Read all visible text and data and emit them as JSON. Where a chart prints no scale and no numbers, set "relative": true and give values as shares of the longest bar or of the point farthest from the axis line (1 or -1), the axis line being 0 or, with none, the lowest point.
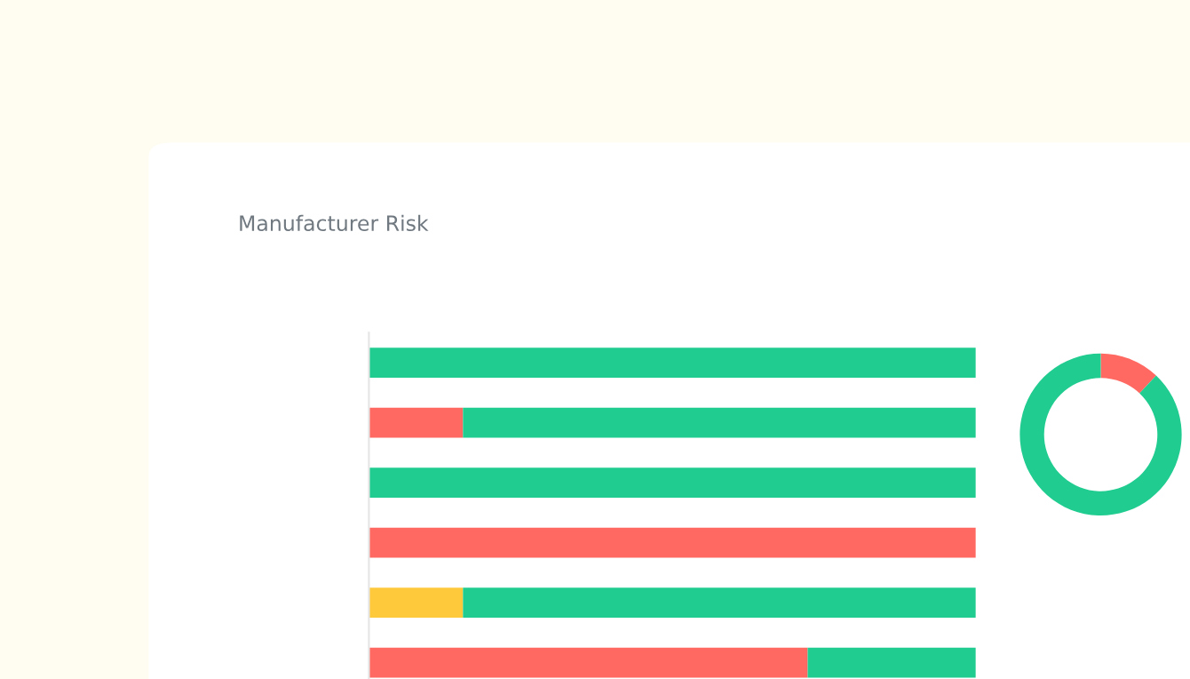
{
  "chart_data": [
    {
      "type": "bar",
      "title": "Manufacturer Risk",
      "orientation": "horizontal",
      "stacked": true,
      "relative": true,
      "categories": [
        null,
        null,
        null,
        null,
        null,
        null
      ],
      "series": [
        {
          "color": "#ff6961",
          "values": [
            0,
            0.155,
            0,
            1,
            0,
            0.723
          ]
        },
        {
          "color": "#ffc93c",
          "values": [
            0,
            0,
            0,
            0,
            0.155,
            0
          ]
        },
        {
          "color": "#20cc90",
          "values": [
            1,
            0.845,
            1,
            0,
            0.845,
            0.277
          ]
        }
      ]
    },
    {
      "type": "donut",
      "categories": [
        null,
        null
      ],
      "values": [
        12,
        88
      ],
      "colors": [
        "#ff6961",
        "#20cc90"
      ]
    }
  ]
}
